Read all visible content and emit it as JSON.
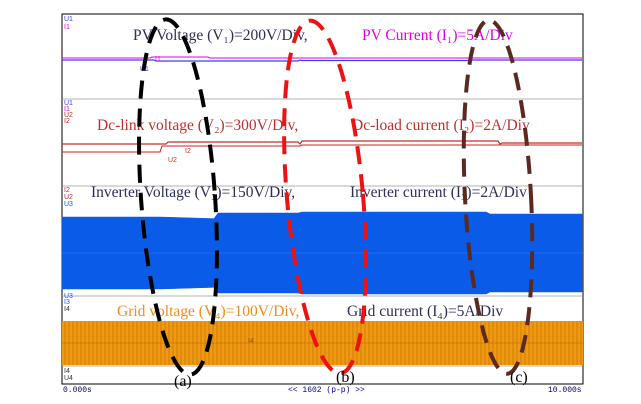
{
  "chart_data": {
    "type": "line",
    "x_start": "0.000s",
    "x_end": "10.000s",
    "timebase": "<< 1602 (p-p) >>",
    "colors": {
      "pv": "#3d3df0",
      "pv_current": "#e000e0",
      "dc_link": "#c0302a",
      "dc_load": "#cc2020",
      "inverter": "#0a5ce8",
      "grid": "#f0960a",
      "grid_text": "#f08c1c",
      "label_text": "#2d2d58",
      "ellipse_a": "#000000",
      "ellipse_b": "#ee1111",
      "ellipse_c": "#5a2a20"
    },
    "panels": [
      {
        "id": "pv",
        "voltage_label": "PV Voltage (V₁)=200V/Div,",
        "current_label": "PV Current (I₁)=5A/Div",
        "voltage_tag": "U1",
        "current_tag": "I1",
        "trace_tag": "U1",
        "trace_tag2": "I1"
      },
      {
        "id": "dc",
        "voltage_label": "Dc-link voltage (V₂)=300V/Div,",
        "current_label": "Dc-load current (I₂)=2A/Div",
        "voltage_tag": "U2",
        "current_tag": "I2",
        "trace_tag": "I2",
        "trace_tag2": "U2"
      },
      {
        "id": "inv",
        "voltage_label": "Inverter Voltage (V₃)=150V/Div,",
        "current_label": "Inverter current (I₃)=2A/Div",
        "voltage_tag": "U3",
        "current_tag": "I3",
        "trace_tag": "U3"
      },
      {
        "id": "grid",
        "voltage_label": "Grid voltage (V₄)=100V/Div,",
        "current_label": "Grid current (I₄)=5A/Div",
        "voltage_tag": "I4",
        "current_tag": "I4",
        "trace_tag": "I4"
      }
    ],
    "events": [
      {
        "label": "(a)"
      },
      {
        "label": "(b)"
      },
      {
        "label": "(c)"
      }
    ],
    "bottom_tags": [
      "I4",
      "U4"
    ]
  }
}
